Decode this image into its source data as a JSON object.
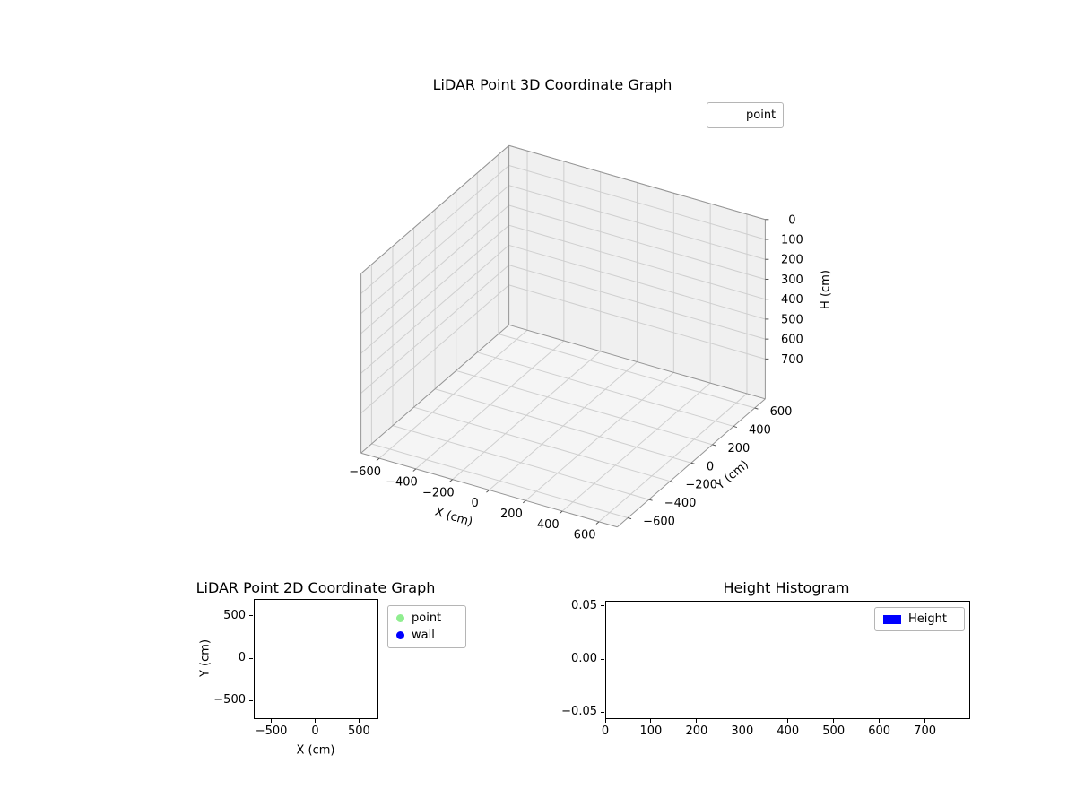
{
  "figure": {
    "background": "#ffffff"
  },
  "chart_data": [
    {
      "id": "plot3d",
      "type": "scatter3d",
      "title": "LiDAR Point 3D Coordinate Graph",
      "xlabel": "X (cm)",
      "ylabel": "Y (cm)",
      "zlabel": "H (cm)",
      "xlim": [
        -700,
        700
      ],
      "ylim": [
        -700,
        700
      ],
      "zlim": [
        0,
        900
      ],
      "z_inverted": true,
      "grid": true,
      "legend_position": "upper right outside",
      "xticks": [
        {
          "v": -600,
          "label": "−600"
        },
        {
          "v": -400,
          "label": "−400"
        },
        {
          "v": -200,
          "label": "−200"
        },
        {
          "v": 0,
          "label": "0"
        },
        {
          "v": 200,
          "label": "200"
        },
        {
          "v": 400,
          "label": "400"
        },
        {
          "v": 600,
          "label": "600"
        }
      ],
      "yticks": [
        {
          "v": 600,
          "label": "600"
        },
        {
          "v": 400,
          "label": "400"
        },
        {
          "v": 200,
          "label": "200"
        },
        {
          "v": 0,
          "label": "0"
        },
        {
          "v": -200,
          "label": "−200"
        },
        {
          "v": -400,
          "label": "−400"
        },
        {
          "v": -600,
          "label": "−600"
        }
      ],
      "zticks": [
        {
          "v": 0,
          "label": "0"
        },
        {
          "v": 100,
          "label": "100"
        },
        {
          "v": 200,
          "label": "200"
        },
        {
          "v": 300,
          "label": "300"
        },
        {
          "v": 400,
          "label": "400"
        },
        {
          "v": 500,
          "label": "500"
        },
        {
          "v": 600,
          "label": "600"
        },
        {
          "v": 700,
          "label": "700"
        }
      ],
      "legend": [
        {
          "label": "point",
          "marker": "none"
        }
      ],
      "points": [],
      "colors": {
        "pane": "#f0f0f0",
        "floor": "#f5f5f5",
        "grid": "#cfcfcf",
        "edge": "#959595",
        "tick": "#555555"
      }
    },
    {
      "id": "plot2d",
      "type": "scatter",
      "title": "LiDAR Point 2D Coordinate Graph",
      "xlabel": "X (cm)",
      "ylabel": "Y (cm)",
      "xlim": [
        -700,
        700
      ],
      "ylim": [
        -700,
        700
      ],
      "grid": false,
      "legend_position": "right outside",
      "xticks": [
        {
          "v": -500,
          "label": "−500"
        },
        {
          "v": 0,
          "label": "0"
        },
        {
          "v": 500,
          "label": "500"
        }
      ],
      "yticks": [
        {
          "v": 500,
          "label": "500"
        },
        {
          "v": 0,
          "label": "0"
        },
        {
          "v": -500,
          "label": "−500"
        }
      ],
      "legend": [
        {
          "label": "point",
          "color": "#90ee90",
          "marker": "circle"
        },
        {
          "label": "wall",
          "color": "#0000ff",
          "marker": "circle"
        }
      ],
      "points": []
    },
    {
      "id": "histogram",
      "type": "bar",
      "title": "Height Histogram",
      "xlabel": "",
      "ylabel": "",
      "xlim": [
        0,
        795
      ],
      "ylim": [
        -0.055,
        0.055
      ],
      "grid": false,
      "legend_position": "upper right inside",
      "xticks": [
        {
          "v": 0,
          "label": "0"
        },
        {
          "v": 100,
          "label": "100"
        },
        {
          "v": 200,
          "label": "200"
        },
        {
          "v": 300,
          "label": "300"
        },
        {
          "v": 400,
          "label": "400"
        },
        {
          "v": 500,
          "label": "500"
        },
        {
          "v": 600,
          "label": "600"
        },
        {
          "v": 700,
          "label": "700"
        }
      ],
      "yticks": [
        {
          "v": 0.05,
          "label": "0.05"
        },
        {
          "v": 0.0,
          "label": "0.00"
        },
        {
          "v": -0.05,
          "label": "−0.05"
        }
      ],
      "legend": [
        {
          "label": "Height",
          "color": "#0000ff",
          "marker": "rect"
        }
      ],
      "values": []
    }
  ]
}
